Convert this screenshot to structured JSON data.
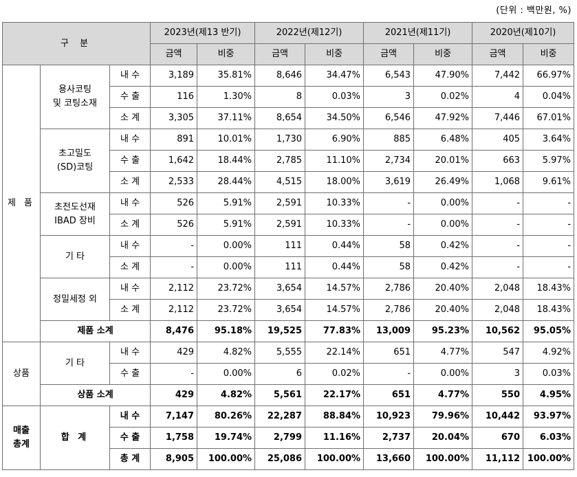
{
  "unit_note": "(단위 : 백만원, %)",
  "header": {
    "category": "구 분",
    "years": [
      "2023년(제13 반기)",
      "2022년(제12기)",
      "2021년(제11기)",
      "2020년(제10기)"
    ],
    "amount": "금액",
    "ratio": "비중"
  },
  "labels": {
    "products": "제 품",
    "goods": "상품",
    "sales_total": "매출\n총계",
    "g1": "용사코팅\n및 코팅소재",
    "g2": "초고밀도\n(SD)코팅",
    "g3": "초전도선재\nIBAD 장비",
    "g4": "기 타",
    "g5": "정밀세정 외",
    "g6": "기 타",
    "grand": "합 계",
    "products_subtotal": "제품 소계",
    "goods_subtotal": "상품 소계",
    "domestic": "내 수",
    "export": "수 출",
    "subtotal": "소 계",
    "total": "총 계"
  },
  "rows": {
    "g1_dom": [
      "3,189",
      "35.81%",
      "8,646",
      "34.47%",
      "6,543",
      "47.90%",
      "7,442",
      "66.97%"
    ],
    "g1_exp": [
      "116",
      "1.30%",
      "8",
      "0.03%",
      "3",
      "0.02%",
      "4",
      "0.04%"
    ],
    "g1_sub": [
      "3,305",
      "37.11%",
      "8,654",
      "34.50%",
      "6,546",
      "47.92%",
      "7,446",
      "67.01%"
    ],
    "g2_dom": [
      "891",
      "10.01%",
      "1,730",
      "6.90%",
      "885",
      "6.48%",
      "405",
      "3.64%"
    ],
    "g2_exp": [
      "1,642",
      "18.44%",
      "2,785",
      "11.10%",
      "2,734",
      "20.01%",
      "663",
      "5.97%"
    ],
    "g2_sub": [
      "2,533",
      "28.44%",
      "4,515",
      "18.00%",
      "3,619",
      "26.49%",
      "1,068",
      "9.61%"
    ],
    "g3_dom": [
      "526",
      "5.91%",
      "2,591",
      "10.33%",
      "-",
      "0.00%",
      "-",
      "-"
    ],
    "g3_sub": [
      "526",
      "5.91%",
      "2,591",
      "10.33%",
      "-",
      "0.00%",
      "-",
      "-"
    ],
    "g4_dom": [
      "-",
      "0.00%",
      "111",
      "0.44%",
      "58",
      "0.42%",
      "-",
      "-"
    ],
    "g4_sub": [
      "-",
      "0.00%",
      "111",
      "0.44%",
      "58",
      "0.42%",
      "-",
      "-"
    ],
    "g5_dom": [
      "2,112",
      "23.72%",
      "3,654",
      "14.57%",
      "2,786",
      "20.40%",
      "2,048",
      "18.43%"
    ],
    "g5_sub": [
      "2,112",
      "23.72%",
      "3,654",
      "14.57%",
      "2,786",
      "20.40%",
      "2,048",
      "18.43%"
    ],
    "prod_sub": [
      "8,476",
      "95.18%",
      "19,525",
      "77.83%",
      "13,009",
      "95.23%",
      "10,562",
      "95.05%"
    ],
    "g6_dom": [
      "429",
      "4.82%",
      "5,555",
      "22.14%",
      "651",
      "4.77%",
      "547",
      "4.92%"
    ],
    "g6_exp": [
      "-",
      "0.00%",
      "6",
      "0.02%",
      "-",
      "0.00%",
      "3",
      "0.03%"
    ],
    "goods_sub": [
      "429",
      "4.82%",
      "5,561",
      "22.17%",
      "651",
      "4.77%",
      "550",
      "4.95%"
    ],
    "tot_dom": [
      "7,147",
      "80.26%",
      "22,287",
      "88.84%",
      "10,923",
      "79.96%",
      "10,442",
      "93.97%"
    ],
    "tot_exp": [
      "1,758",
      "19.74%",
      "2,799",
      "11.16%",
      "2,737",
      "20.04%",
      "670",
      "6.03%"
    ],
    "tot_all": [
      "8,905",
      "100.00%",
      "25,086",
      "100.00%",
      "13,660",
      "100.00%",
      "11,112",
      "100.00%"
    ]
  }
}
